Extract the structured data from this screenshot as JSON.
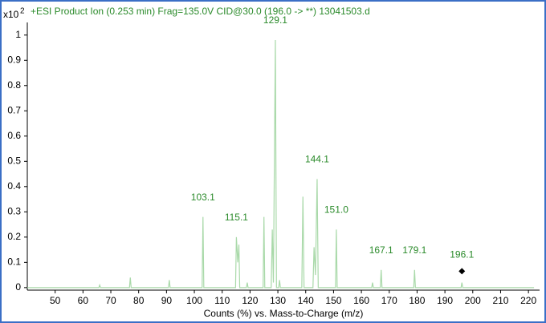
{
  "chart_data": {
    "type": "line",
    "title": "+ESI Product Ion (0.253 min) Frag=135.0V CID@30.0 (196.0 -> **) 13041503.d",
    "y_scale_label": "x10",
    "y_scale_exponent": "2",
    "x_label": "Counts (%) vs. Mass-to-Charge (m/z)",
    "xlim": [
      40,
      224
    ],
    "ylim": [
      -0.01,
      1.05
    ],
    "xticks": [
      50,
      60,
      70,
      80,
      90,
      100,
      110,
      120,
      130,
      140,
      150,
      160,
      170,
      180,
      190,
      200,
      210,
      220
    ],
    "yticks": [
      0,
      0.1,
      0.2,
      0.3,
      0.4,
      0.5,
      0.6,
      0.7,
      0.8,
      0.9,
      1
    ],
    "series": [
      {
        "color": "#a9d9a9",
        "x": [
          40,
          65.7,
          66,
          66.3,
          76.7,
          77,
          77.3,
          90.7,
          91,
          91.3,
          102.8,
          103.1,
          103.4,
          114.8,
          115.1,
          115.6,
          116,
          116.3,
          118.7,
          119,
          119.3,
          124.7,
          125,
          125.3,
          127.6,
          128,
          128.4,
          129.1,
          129.5,
          130.3,
          130.6,
          130.9,
          138.6,
          139,
          139.4,
          142.6,
          143,
          143.5,
          144.1,
          144.5,
          150.7,
          151,
          151.3,
          163.7,
          164,
          164.3,
          166.8,
          167.1,
          167.4,
          178.8,
          179.1,
          179.4,
          195.8,
          196.1,
          196.4,
          222
        ],
        "values": [
          0,
          0,
          0.01,
          0,
          0,
          0.04,
          0,
          0,
          0.03,
          0,
          0,
          0.28,
          0,
          0,
          0.2,
          0.1,
          0.17,
          0,
          0,
          0.02,
          0,
          0,
          0.28,
          0,
          0,
          0.23,
          0.02,
          0.98,
          0,
          0,
          0.03,
          0,
          0,
          0.36,
          0,
          0,
          0.16,
          0.05,
          0.43,
          0,
          0,
          0.23,
          0,
          0,
          0.02,
          0,
          0,
          0.07,
          0,
          0,
          0.07,
          0,
          0,
          0.02,
          0,
          0
        ]
      }
    ],
    "annotations": [
      {
        "text": "103.1",
        "x": 103.1,
        "y": 0.28
      },
      {
        "text": "115.1",
        "x": 115.1,
        "y": 0.2
      },
      {
        "text": "129.1",
        "x": 129.1,
        "y": 0.98
      },
      {
        "text": "144.1",
        "x": 144.1,
        "y": 0.43
      },
      {
        "text": "151.0",
        "x": 151,
        "y": 0.23
      },
      {
        "text": "167.1",
        "x": 167.1,
        "y": 0.07
      },
      {
        "text": "179.1",
        "x": 179.1,
        "y": 0.07
      },
      {
        "text": "196.1",
        "x": 196.1,
        "y": 0.065
      }
    ],
    "precursor": {
      "x": 196.1,
      "y": 0.065
    },
    "label_color": "#2a8a2a"
  }
}
